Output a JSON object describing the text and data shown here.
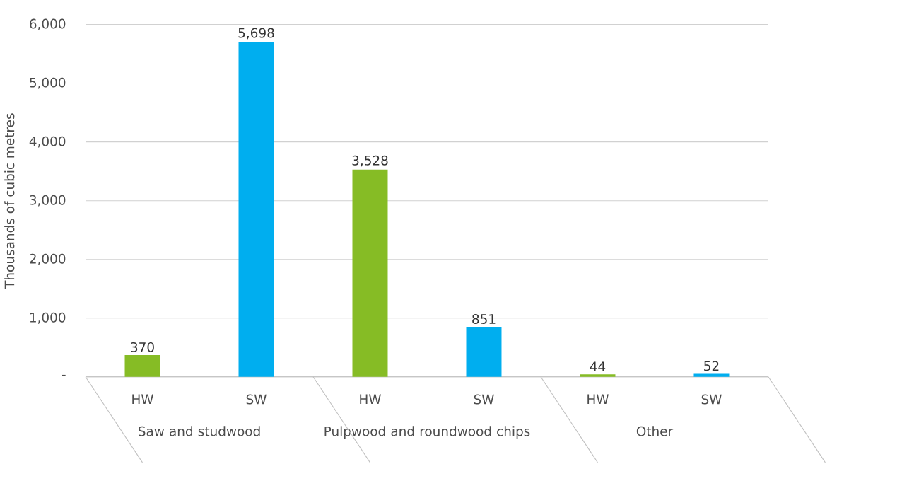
{
  "chart_data": {
    "type": "bar",
    "ylabel": "Thousands of cubic metres",
    "categories": [
      "HW",
      "SW",
      "HW",
      "SW",
      "HW",
      "SW"
    ],
    "values": [
      370,
      5698,
      3528,
      851,
      44,
      52
    ],
    "value_labels": [
      "370",
      "5,698",
      "3,528",
      "851",
      "44",
      "52"
    ],
    "colors": [
      "#86bc25",
      "#00aeef",
      "#86bc25",
      "#00aeef",
      "#86bc25",
      "#00aeef"
    ],
    "annotations": [
      "Saw and studwood",
      "Pulpwood and roundwood chips",
      "Other"
    ],
    "ylim": [
      0,
      6000
    ],
    "yticks": [
      {
        "value": 0,
        "label": "-"
      },
      {
        "value": 1000,
        "label": "1,000"
      },
      {
        "value": 2000,
        "label": "2,000"
      },
      {
        "value": 3000,
        "label": "3,000"
      },
      {
        "value": 4000,
        "label": "4,000"
      },
      {
        "value": 5000,
        "label": "5,000"
      },
      {
        "value": 6000,
        "label": "6,000"
      }
    ],
    "grid": "y"
  }
}
